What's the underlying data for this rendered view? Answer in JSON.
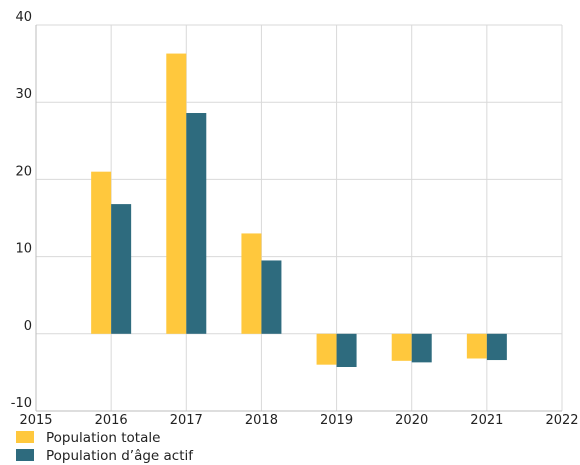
{
  "chart_data": {
    "type": "bar",
    "x": [
      2016,
      2017,
      2018,
      2019,
      2020,
      2021
    ],
    "series": [
      {
        "name": "Population totale",
        "values": [
          21.0,
          36.3,
          13.0,
          -4.0,
          -3.5,
          -3.2
        ],
        "color": "#FFC83D"
      },
      {
        "name": "Population d’âge actif",
        "values": [
          16.8,
          28.6,
          9.5,
          -4.3,
          -3.7,
          -3.4
        ],
        "color": "#2E6B7E"
      }
    ],
    "xlim": [
      2015,
      2022
    ],
    "ylim": [
      -10,
      40
    ],
    "xticks": [
      2015,
      2016,
      2017,
      2018,
      2019,
      2020,
      2021,
      2022
    ],
    "yticks": [
      -10,
      0,
      10,
      20,
      30,
      40
    ],
    "grid": true,
    "legend_position": "bottom-left",
    "title": "",
    "xlabel": "",
    "ylabel": ""
  }
}
